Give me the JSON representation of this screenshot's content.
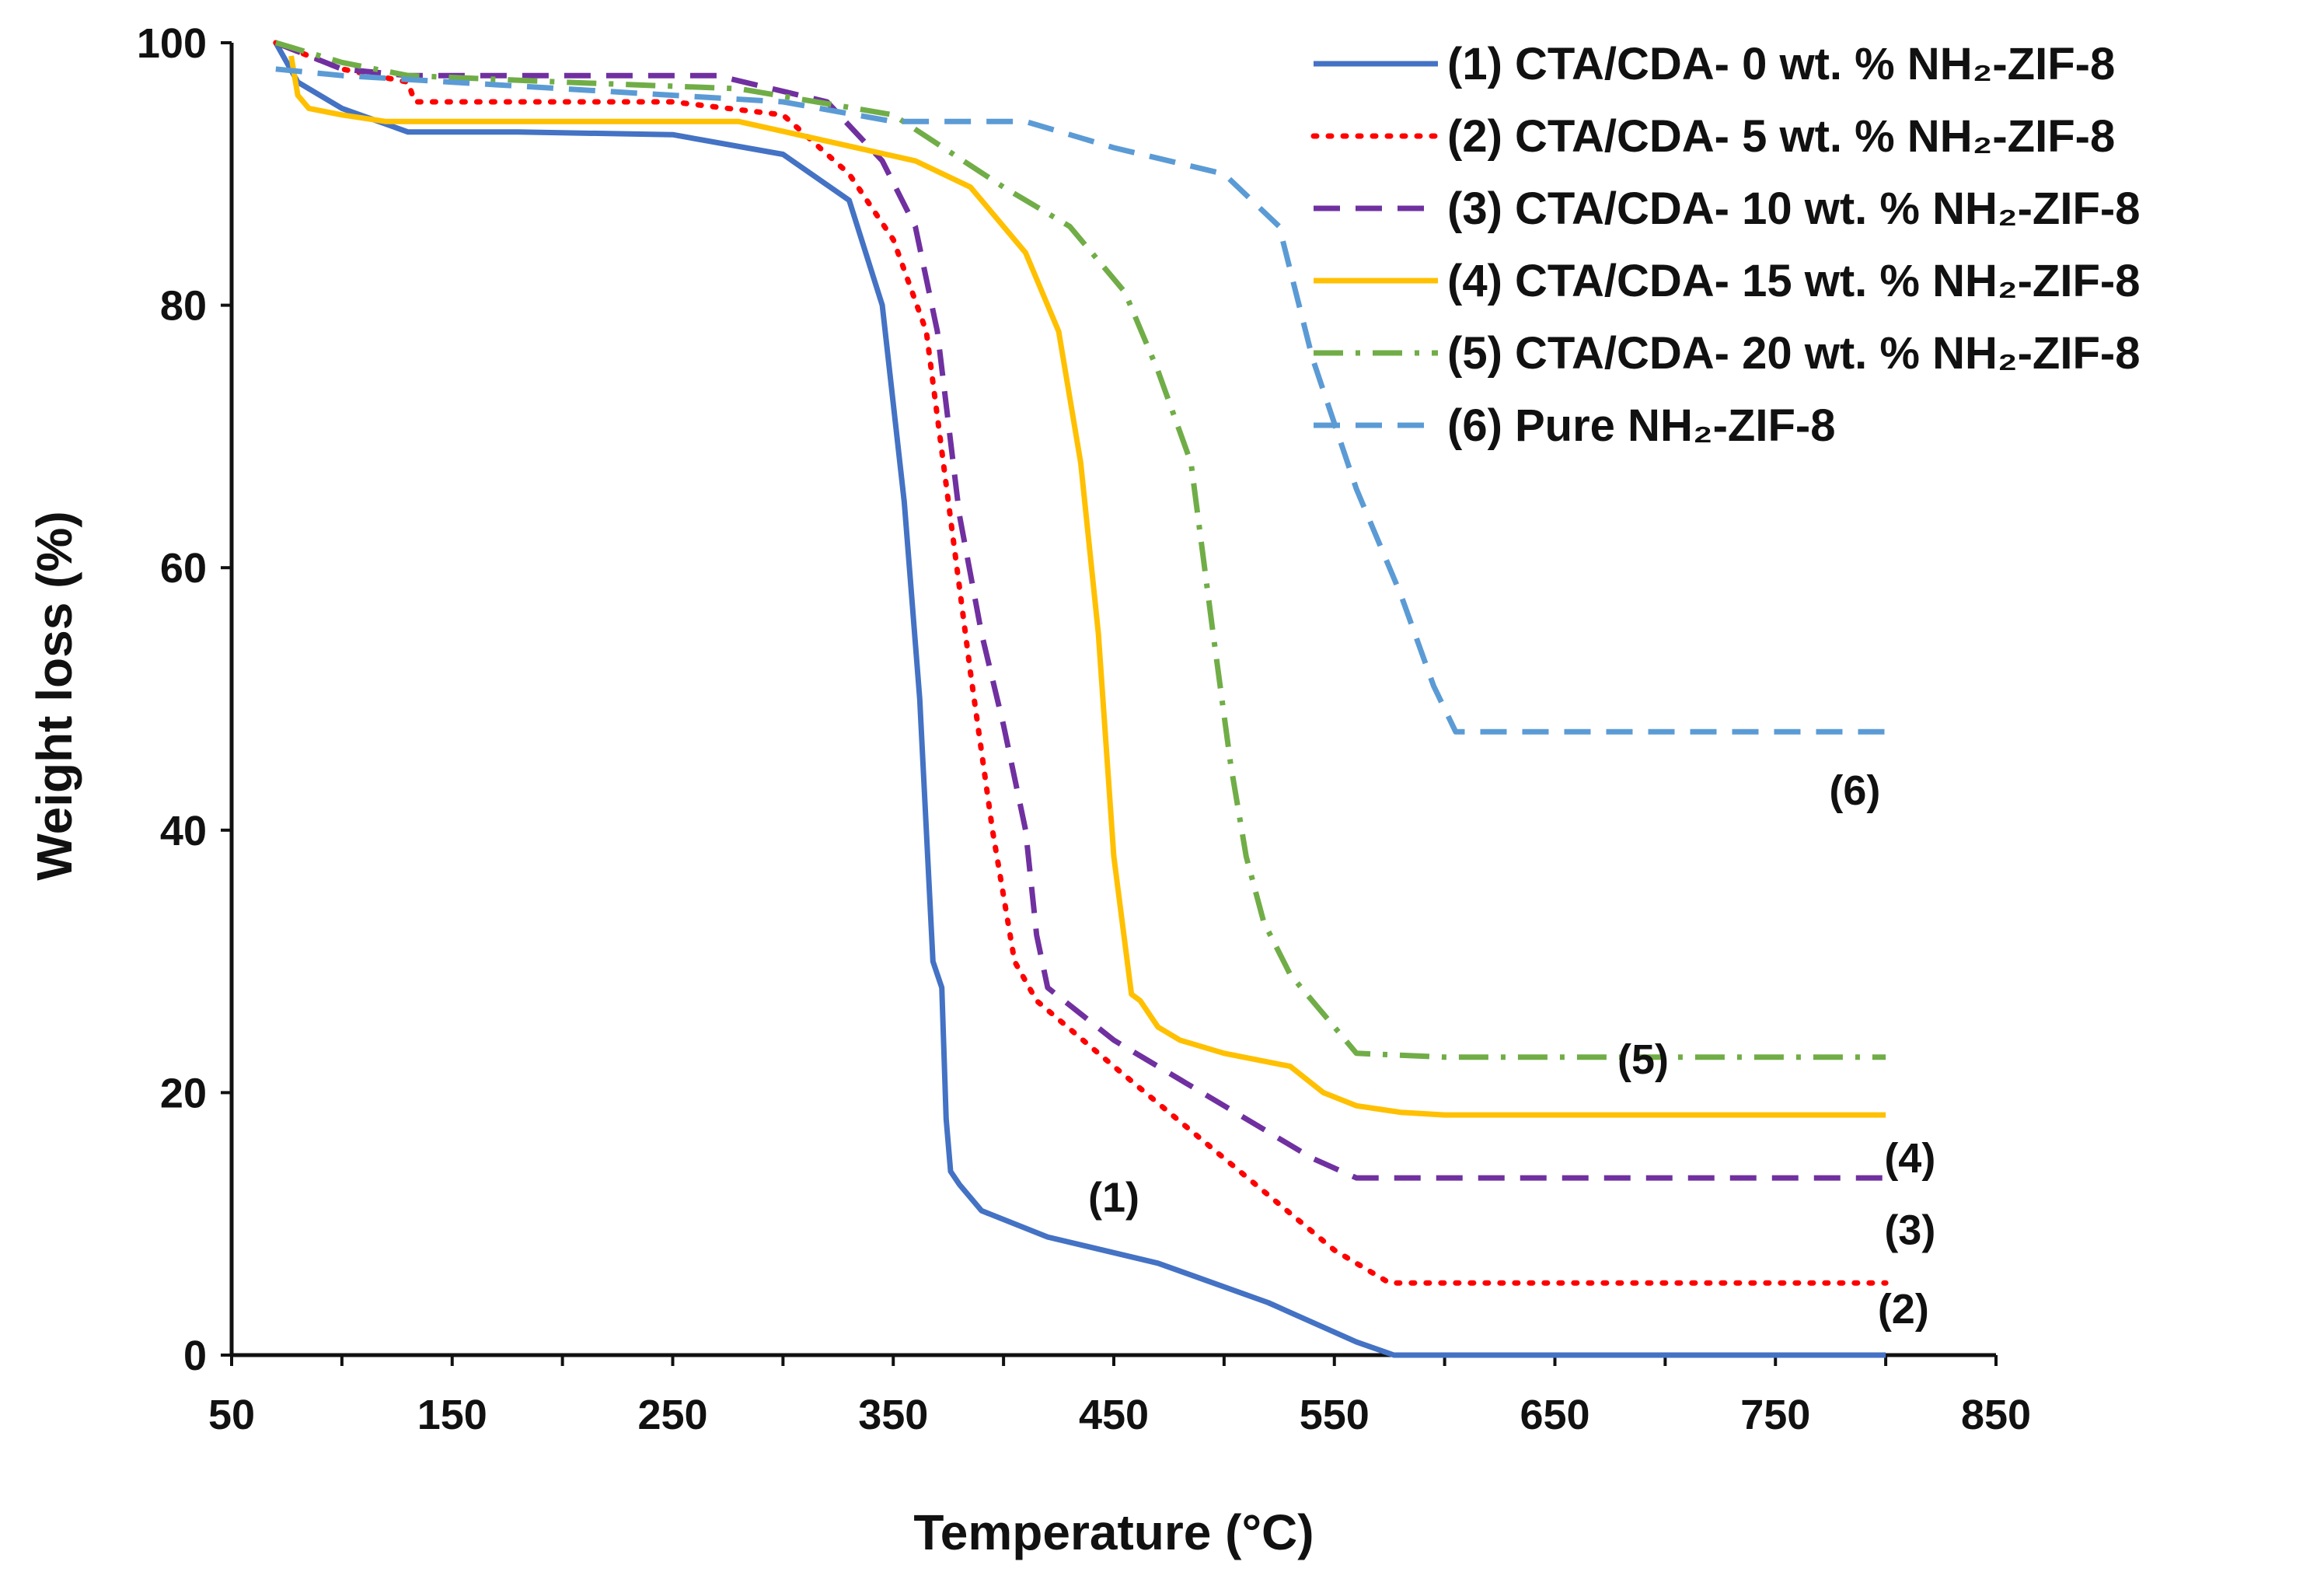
{
  "chart_data": {
    "type": "line",
    "title": "",
    "xlabel": "Temperature (°C)",
    "ylabel": "Weight loss (%)",
    "xlim": [
      50,
      850
    ],
    "ylim": [
      0,
      100
    ],
    "xticks": [
      50,
      150,
      250,
      350,
      450,
      550,
      650,
      750,
      850
    ],
    "yticks": [
      0,
      20,
      40,
      60,
      80,
      100
    ],
    "legend_position": "top-right",
    "grid": false,
    "series": [
      {
        "name": "(1)  CTA/CDA- 0 wt. % NH₂-ZIF-8",
        "color": "#4472C4",
        "dash": "solid",
        "label": "(1)",
        "x": [
          70,
          80,
          100,
          130,
          180,
          250,
          300,
          330,
          345,
          355,
          362,
          368,
          372,
          374,
          376,
          380,
          390,
          420,
          470,
          520,
          560,
          577,
          600,
          700,
          800
        ],
        "y": [
          100,
          97,
          95,
          93.2,
          93.2,
          93,
          91.5,
          88,
          80,
          65,
          50,
          30,
          28,
          18,
          14,
          13,
          11,
          9,
          7,
          4,
          1,
          0,
          0,
          0,
          0
        ]
      },
      {
        "name": "(2)  CTA/CDA- 5 wt. % NH₂-ZIF-8",
        "color": "#FF0000",
        "dash": "dotted",
        "label": "(2)",
        "x": [
          70,
          100,
          130,
          133,
          150,
          250,
          300,
          330,
          350,
          365,
          375,
          385,
          395,
          405,
          415,
          450,
          500,
          550,
          575,
          600,
          700,
          800
        ],
        "y": [
          100,
          98,
          97,
          95.5,
          95.5,
          95.5,
          94.5,
          90,
          85,
          78,
          65,
          52,
          40,
          30,
          27,
          22,
          15,
          8,
          5.5,
          5.5,
          5.5,
          5.5
        ]
      },
      {
        "name": "(3)  CTA/CDA- 10 wt. % NH₂-ZIF-8",
        "color": "#7030A0",
        "dash": "dashed",
        "label": "(3)",
        "x": [
          70,
          100,
          130,
          200,
          270,
          320,
          345,
          360,
          370,
          380,
          390,
          400,
          410,
          415,
          420,
          450,
          500,
          540,
          560,
          600,
          700,
          800
        ],
        "y": [
          100,
          98,
          97.5,
          97.5,
          97.5,
          95.5,
          91,
          86,
          78,
          64,
          55,
          48,
          40,
          32,
          28,
          24,
          19,
          15,
          13.5,
          13.5,
          13.5,
          13.5
        ]
      },
      {
        "name": "(4)  CTA/CDA- 15 wt. % NH₂-ZIF-8",
        "color": "#FFC000",
        "dash": "solid",
        "label": "(4)",
        "x": [
          77,
          80,
          85,
          100,
          120,
          150,
          200,
          280,
          320,
          360,
          385,
          410,
          425,
          435,
          443,
          450,
          458,
          462,
          470,
          480,
          500,
          530,
          545,
          560,
          580,
          600,
          700,
          800
        ],
        "y": [
          99,
          96,
          95,
          94.5,
          94,
          94,
          94,
          94,
          92.5,
          91,
          89,
          84,
          78,
          68,
          55,
          38,
          27.5,
          27,
          25,
          24,
          23,
          22,
          20,
          19,
          18.5,
          18.3,
          18.3,
          18.3
        ]
      },
      {
        "name": "(5)  CTA/CDA- 20 wt. % NH₂-ZIF-8",
        "color": "#70AD47",
        "dash": "dashdot",
        "label": "(5)",
        "x": [
          70,
          100,
          130,
          200,
          280,
          350,
          400,
          430,
          455,
          470,
          485,
          495,
          503,
          510,
          518,
          530,
          550,
          560,
          600,
          700,
          800
        ],
        "y": [
          100,
          98.5,
          97.5,
          97,
          96.5,
          94.5,
          89,
          86,
          81,
          75,
          68,
          55,
          45,
          38,
          33,
          29,
          25,
          23,
          22.7,
          22.7,
          22.7
        ]
      },
      {
        "name": "(6)  Pure NH₂-ZIF-8",
        "color": "#5B9BD5",
        "dash": "dashed",
        "label": "(6)",
        "x": [
          70,
          100,
          200,
          300,
          350,
          410,
          450,
          500,
          525,
          540,
          560,
          580,
          595,
          605,
          650,
          700,
          800
        ],
        "y": [
          98,
          97.5,
          96.5,
          95.5,
          94,
          94,
          92,
          90,
          86,
          76,
          66,
          58,
          51,
          47.5,
          47.5,
          47.5,
          47.5
        ]
      }
    ],
    "annotations": [
      {
        "text": "(1)",
        "x": 450,
        "y": 12
      },
      {
        "text": "(2)",
        "x": 808,
        "y": 3.5
      },
      {
        "text": "(3)",
        "x": 811,
        "y": 9.5
      },
      {
        "text": "(4)",
        "x": 811,
        "y": 15
      },
      {
        "text": "(5)",
        "x": 690,
        "y": 22.5
      },
      {
        "text": "(6)",
        "x": 786,
        "y": 43
      }
    ]
  }
}
